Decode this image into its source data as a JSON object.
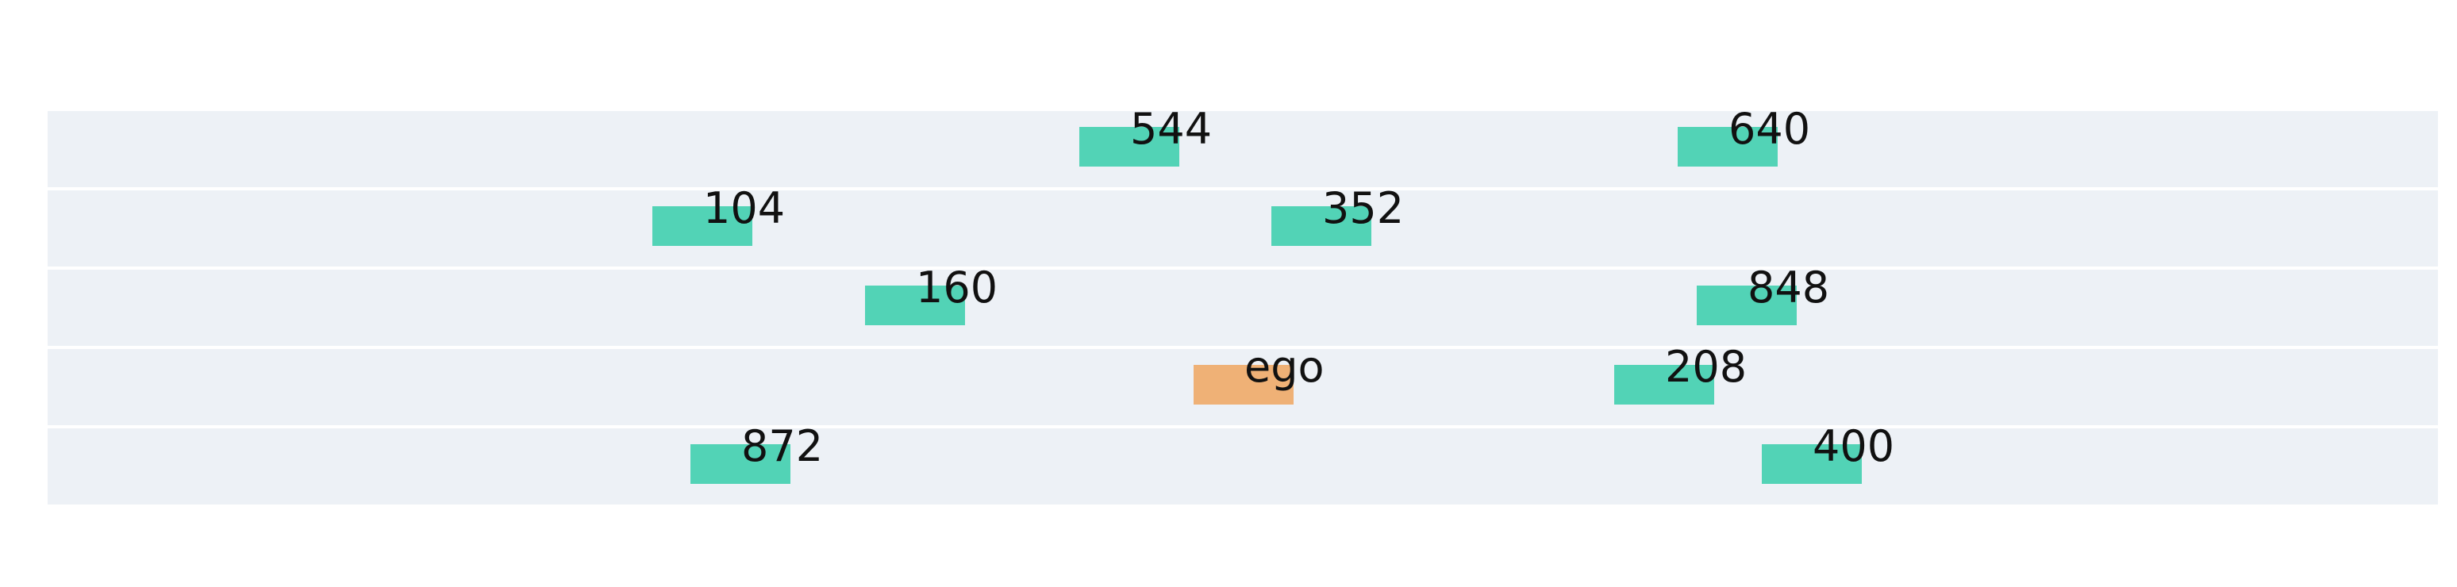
{
  "colors": {
    "background": "#ffffff",
    "lane": "#edf1f6",
    "other_vehicle": "#52d3b6",
    "ego_vehicle": "#efb176",
    "text": "#111111"
  },
  "lanes": [
    {
      "vehicles": [
        {
          "id": "544",
          "type": "other"
        },
        {
          "id": "640",
          "type": "other"
        }
      ]
    },
    {
      "vehicles": [
        {
          "id": "104",
          "type": "other"
        },
        {
          "id": "352",
          "type": "other"
        }
      ]
    },
    {
      "vehicles": [
        {
          "id": "160",
          "type": "other"
        },
        {
          "id": "848",
          "type": "other"
        }
      ]
    },
    {
      "vehicles": [
        {
          "id": "ego",
          "type": "ego"
        },
        {
          "id": "208",
          "type": "other"
        }
      ]
    },
    {
      "vehicles": [
        {
          "id": "872",
          "type": "other"
        },
        {
          "id": "400",
          "type": "other"
        }
      ]
    }
  ]
}
